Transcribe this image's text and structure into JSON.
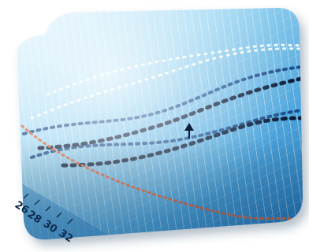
{
  "image": {
    "subject": "tilted-chart-tile-icon",
    "palette": {
      "background": "#ffffff",
      "tile_light": "#cfeefb",
      "tile_mid": "#5fb6e6",
      "tile_dark": "#1a6fb0",
      "grid": "#eaf7ff",
      "series_dark": "#0c1f3a",
      "series_blue": "#1d4f8f",
      "series_light": "#ffffff",
      "series_red": "#e0643a"
    }
  },
  "axis_numbers": [
    "26",
    "28",
    "30",
    "32"
  ]
}
